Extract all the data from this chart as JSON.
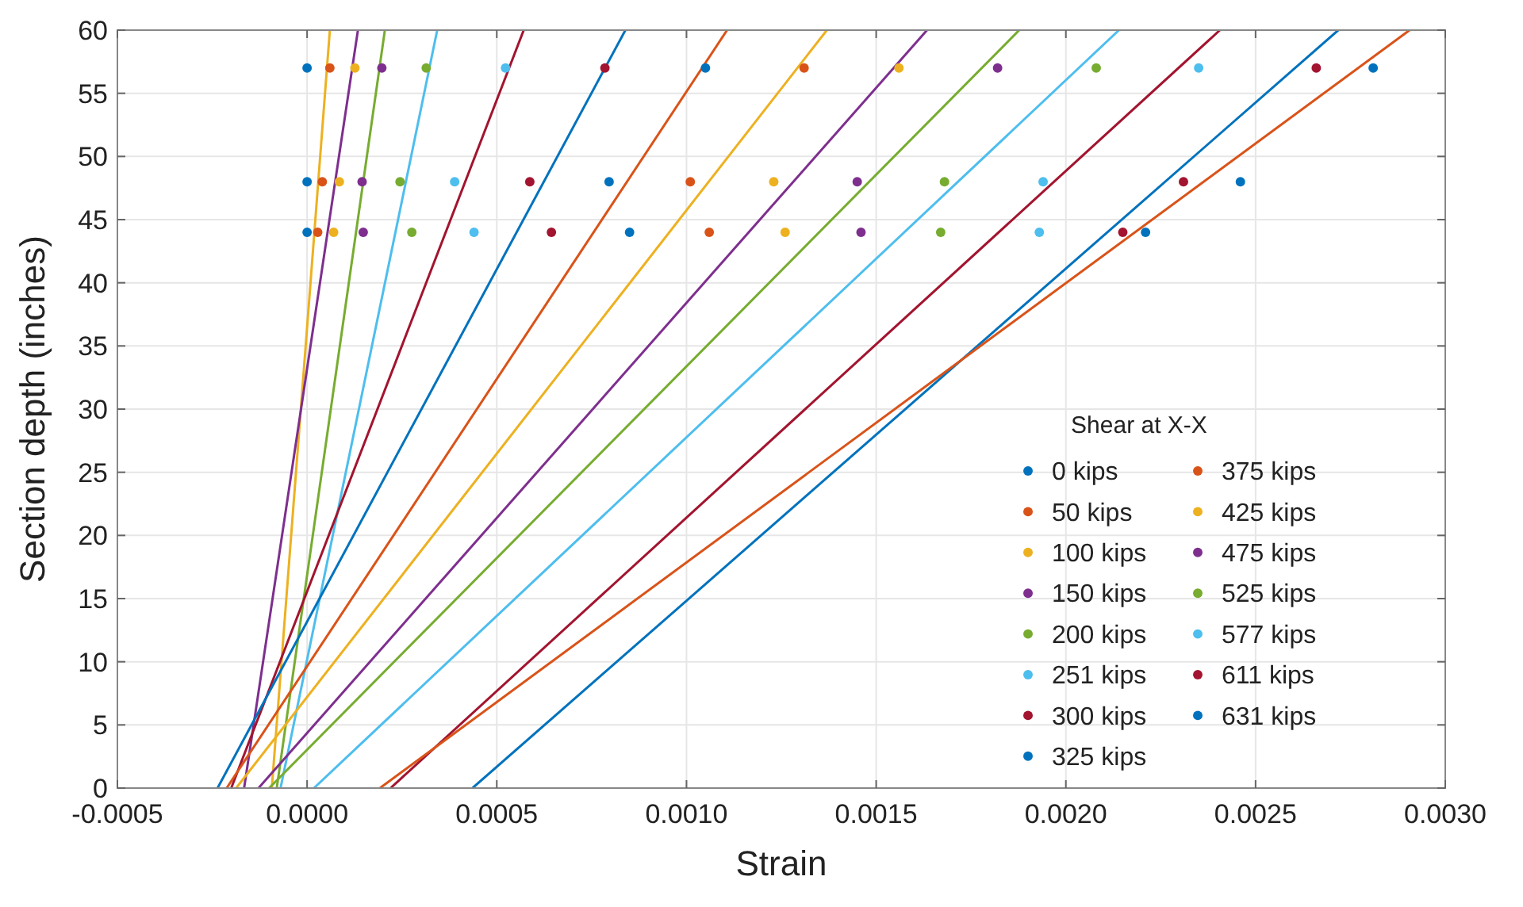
{
  "chart_data": {
    "type": "scatter",
    "xlabel": "Strain",
    "ylabel": "Section depth (inches)",
    "legend_title": "Shear at X-X",
    "legend": "right",
    "grid": true,
    "marker": "circle",
    "xlim": [
      -0.0005,
      0.003
    ],
    "xticks": [
      {
        "value": -0.0005,
        "label": "-0.0005"
      },
      {
        "value": 0,
        "label": "0.0000"
      },
      {
        "value": 0.0005,
        "label": "0.0005"
      },
      {
        "value": 0.001,
        "label": "0.0010"
      },
      {
        "value": 0.0015,
        "label": "0.0015"
      },
      {
        "value": 0.002,
        "label": "0.0020"
      },
      {
        "value": 0.0025,
        "label": "0.0025"
      },
      {
        "value": 0.003,
        "label": "0.0030"
      }
    ],
    "ylim": [
      0,
      60
    ],
    "yticks": [
      0,
      5,
      10,
      15,
      20,
      25,
      30,
      35,
      40,
      45,
      50,
      55,
      60
    ],
    "series": [
      {
        "name": "0 kips",
        "color": "#0072bd",
        "x": [
          0,
          0,
          0
        ],
        "values": [
          44,
          48,
          57
        ]
      },
      {
        "name": "50 kips",
        "color": "#d95319",
        "x": [
          2.8e-05,
          4e-05,
          6e-05
        ],
        "values": [
          44,
          48,
          57
        ]
      },
      {
        "name": "100 kips",
        "color": "#edb120",
        "x": [
          7e-05,
          8.5e-05,
          0.000126
        ],
        "values": [
          44,
          48,
          57
        ]
      },
      {
        "name": "150 kips",
        "color": "#7e2f8e",
        "x": [
          0.000148,
          0.000145,
          0.000197
        ],
        "values": [
          44,
          48,
          57
        ]
      },
      {
        "name": "200 kips",
        "color": "#77ac30",
        "x": [
          0.000276,
          0.000245,
          0.000314
        ],
        "values": [
          44,
          48,
          57
        ]
      },
      {
        "name": "251 kips",
        "color": "#4dbeee",
        "x": [
          0.00044,
          0.000389,
          0.000523
        ],
        "values": [
          44,
          48,
          57
        ]
      },
      {
        "name": "300 kips",
        "color": "#a2142f",
        "x": [
          0.000644,
          0.000587,
          0.000785
        ],
        "values": [
          44,
          48,
          57
        ]
      },
      {
        "name": "325 kips",
        "color": "#0072bd",
        "x": [
          0.00085,
          0.000796,
          0.00105
        ],
        "values": [
          44,
          48,
          57
        ]
      },
      {
        "name": "375 kips",
        "color": "#d95319",
        "x": [
          0.00106,
          0.00101,
          0.00131
        ],
        "values": [
          44,
          48,
          57
        ]
      },
      {
        "name": "425 kips",
        "color": "#edb120",
        "x": [
          0.00126,
          0.00123,
          0.00156
        ],
        "values": [
          44,
          48,
          57
        ]
      },
      {
        "name": "475 kips",
        "color": "#7e2f8e",
        "x": [
          0.00146,
          0.00145,
          0.00182
        ],
        "values": [
          44,
          48,
          57
        ]
      },
      {
        "name": "525 kips",
        "color": "#77ac30",
        "x": [
          0.00167,
          0.00168,
          0.00208
        ],
        "values": [
          44,
          48,
          57
        ]
      },
      {
        "name": "577 kips",
        "color": "#4dbeee",
        "x": [
          0.00193,
          0.00194,
          0.00235
        ],
        "values": [
          44,
          48,
          57
        ]
      },
      {
        "name": "611 kips",
        "color": "#a2142f",
        "x": [
          0.00215,
          0.00231,
          0.00266
        ],
        "values": [
          44,
          48,
          57
        ]
      },
      {
        "name": "631 kips",
        "color": "#0072bd",
        "x": [
          0.00221,
          0.00246,
          0.00281
        ],
        "values": [
          44,
          48,
          57
        ]
      },
      {
        "type": "line",
        "marker": "none",
        "color": "#edb120",
        "x": [
          -9.3e-05,
          6e-05
        ],
        "values": [
          0,
          60
        ]
      },
      {
        "type": "line",
        "marker": "none",
        "color": "#7e2f8e",
        "x": [
          -0.000166,
          0.000134
        ],
        "values": [
          0,
          60
        ]
      },
      {
        "type": "line",
        "marker": "none",
        "color": "#77ac30",
        "x": [
          -8e-05,
          0.000205
        ],
        "values": [
          0,
          60
        ]
      },
      {
        "type": "line",
        "marker": "none",
        "color": "#4dbeee",
        "x": [
          -7e-05,
          0.000343
        ],
        "values": [
          0,
          60
        ]
      },
      {
        "type": "line",
        "marker": "none",
        "color": "#a2142f",
        "x": [
          -0.0002,
          0.000571
        ],
        "values": [
          0,
          60
        ]
      },
      {
        "type": "line",
        "marker": "none",
        "color": "#0072bd",
        "x": [
          -0.000236,
          0.000839
        ],
        "values": [
          0,
          60
        ]
      },
      {
        "type": "line",
        "marker": "none",
        "color": "#d95319",
        "x": [
          -0.000212,
          0.001107
        ],
        "values": [
          0,
          60
        ]
      },
      {
        "type": "line",
        "marker": "none",
        "color": "#edb120",
        "x": [
          -0.000187,
          0.00137
        ],
        "values": [
          0,
          60
        ]
      },
      {
        "type": "line",
        "marker": "none",
        "color": "#7e2f8e",
        "x": [
          -0.000128,
          0.001634
        ],
        "values": [
          0,
          60
        ]
      },
      {
        "type": "line",
        "marker": "none",
        "color": "#77ac30",
        "x": [
          -0.0001,
          0.001877
        ],
        "values": [
          0,
          60
        ]
      },
      {
        "type": "line",
        "marker": "none",
        "color": "#4dbeee",
        "x": [
          1.8e-05,
          0.00214
        ],
        "values": [
          0,
          60
        ]
      },
      {
        "type": "line",
        "marker": "none",
        "color": "#a2142f",
        "x": [
          0.00022,
          0.002406
        ],
        "values": [
          0,
          60
        ]
      },
      {
        "type": "line",
        "marker": "none",
        "color": "#0072bd",
        "x": [
          0.000436,
          0.002718
        ],
        "values": [
          0,
          60
        ]
      },
      {
        "type": "line",
        "marker": "none",
        "color": "#d95319",
        "x": [
          0.000192,
          0.002906
        ],
        "values": [
          0,
          60
        ]
      }
    ]
  }
}
